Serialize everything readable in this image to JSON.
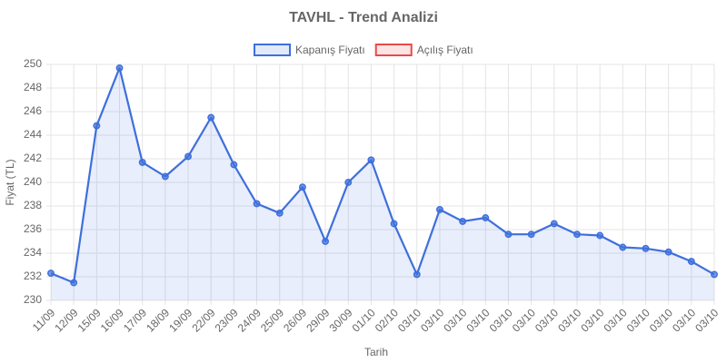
{
  "chart_data": {
    "type": "line",
    "title": "TAVHL - Trend Analizi",
    "xlabel": "Tarih",
    "ylabel": "Fiyat (TL)",
    "categories": [
      "11/09",
      "12/09",
      "15/09",
      "16/09",
      "17/09",
      "18/09",
      "19/09",
      "22/09",
      "23/09",
      "24/09",
      "25/09",
      "26/09",
      "29/09",
      "30/09",
      "01/10",
      "02/10",
      "03/10",
      "03/10",
      "03/10",
      "03/10",
      "03/10",
      "03/10",
      "03/10",
      "03/10",
      "03/10",
      "03/10",
      "03/10",
      "03/10",
      "03/10",
      "03/10"
    ],
    "series": [
      {
        "name": "Kapanış Fiyatı",
        "color": "#3e6fdc",
        "fill": true,
        "values": [
          232.3,
          231.5,
          244.8,
          249.7,
          241.7,
          240.5,
          242.2,
          245.5,
          241.5,
          238.2,
          237.4,
          239.6,
          235.0,
          240.0,
          241.9,
          236.5,
          232.2,
          237.7,
          236.7,
          237.0,
          235.6,
          235.6,
          236.5,
          235.6,
          235.5,
          234.5,
          234.4,
          234.1,
          233.3,
          232.2
        ]
      },
      {
        "name": "Açılış Fiyatı",
        "color": "#e84a4a",
        "fill": false,
        "values": [
          null,
          null,
          null,
          null,
          null,
          null,
          null,
          null,
          null,
          null,
          null,
          null,
          null,
          null,
          null,
          null,
          null,
          null,
          null,
          null,
          null,
          null,
          null,
          null,
          null,
          null,
          null,
          null,
          null,
          null
        ]
      }
    ],
    "ylim": [
      230,
      250
    ],
    "yticks": [
      230,
      232,
      234,
      236,
      238,
      240,
      242,
      244,
      246,
      248,
      250
    ],
    "grid": true,
    "legend": "top"
  }
}
